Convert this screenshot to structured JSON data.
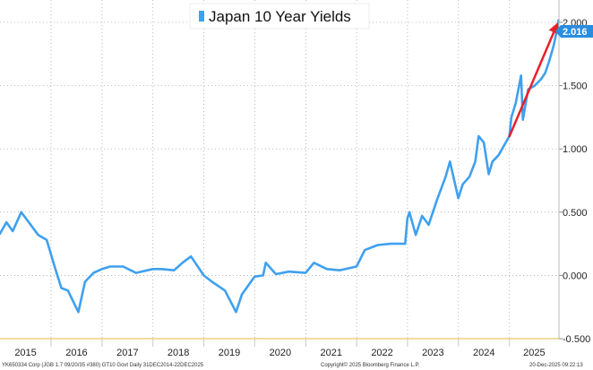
{
  "chart_data": {
    "type": "line",
    "title": "Japan 10 Year Yields",
    "series": [
      {
        "name": "Japan 10 Year Yields",
        "color": "#3fa0ef",
        "x": [
          "2014-12-31",
          "2015-02-15",
          "2015-04-01",
          "2015-06-01",
          "2015-08-01",
          "2015-10-01",
          "2015-12-01",
          "2016-02-01",
          "2016-03-15",
          "2016-05-01",
          "2016-07-15",
          "2016-09-01",
          "2016-11-01",
          "2016-12-31",
          "2017-03-01",
          "2017-06-01",
          "2017-09-01",
          "2017-12-31",
          "2018-03-01",
          "2018-06-01",
          "2018-08-01",
          "2018-10-01",
          "2018-12-31",
          "2019-03-01",
          "2019-06-01",
          "2019-08-20",
          "2019-10-01",
          "2019-12-31",
          "2020-03-01",
          "2020-03-20",
          "2020-06-01",
          "2020-09-01",
          "2020-12-31",
          "2021-03-01",
          "2021-06-01",
          "2021-09-01",
          "2021-12-31",
          "2022-03-01",
          "2022-06-01",
          "2022-09-01",
          "2022-12-15",
          "2022-12-31",
          "2023-01-15",
          "2023-03-01",
          "2023-04-15",
          "2023-06-01",
          "2023-08-01",
          "2023-10-01",
          "2023-11-01",
          "2023-12-31",
          "2024-02-01",
          "2024-03-20",
          "2024-05-01",
          "2024-05-25",
          "2024-07-01",
          "2024-08-05",
          "2024-09-01",
          "2024-10-15",
          "2024-12-31",
          "2025-01-15",
          "2025-02-15",
          "2025-03-25",
          "2025-04-07",
          "2025-05-15",
          "2025-07-01",
          "2025-08-15",
          "2025-09-15",
          "2025-10-15",
          "2025-11-15",
          "2025-12-10",
          "2025-12-19"
        ],
        "y": [
          0.33,
          0.42,
          0.35,
          0.5,
          0.41,
          0.32,
          0.28,
          0.05,
          -0.1,
          -0.12,
          -0.29,
          -0.05,
          0.02,
          0.05,
          0.07,
          0.07,
          0.02,
          0.05,
          0.05,
          0.04,
          0.1,
          0.15,
          0.0,
          -0.05,
          -0.12,
          -0.29,
          -0.15,
          -0.01,
          0.0,
          0.1,
          0.01,
          0.03,
          0.02,
          0.1,
          0.05,
          0.04,
          0.07,
          0.2,
          0.24,
          0.25,
          0.25,
          0.45,
          0.5,
          0.32,
          0.47,
          0.4,
          0.6,
          0.78,
          0.9,
          0.61,
          0.72,
          0.78,
          0.9,
          1.1,
          1.05,
          0.8,
          0.9,
          0.95,
          1.1,
          1.25,
          1.36,
          1.58,
          1.23,
          1.47,
          1.5,
          1.55,
          1.6,
          1.7,
          1.82,
          1.95,
          2.016
        ]
      }
    ],
    "x_ticks": [
      "2015",
      "2016",
      "2017",
      "2018",
      "2019",
      "2020",
      "2021",
      "2022",
      "2023",
      "2024",
      "2025"
    ],
    "y_ticks": [
      "2.000",
      "1.500",
      "1.000",
      "0.500",
      "0.000",
      "-0.500"
    ],
    "ylim": [
      -0.5,
      2.12
    ],
    "xlim": [
      "2014-12-31",
      "2025-12-22"
    ],
    "grid": true,
    "y_axis_side": "right",
    "last_value": "2.016",
    "annotation": {
      "type": "arrow",
      "color": "#e8202a",
      "from": {
        "x": "2025-01-01",
        "y": 1.1
      },
      "to": {
        "x": "2025-12-15",
        "y": 2.0
      }
    }
  },
  "footer": {
    "left": "YK650334 Corp (JGB 1.7 09/20/35 #380) GT10  Govt Daily 31DEC2014-22DEC2025",
    "center": "Copyright© 2025 Bloomberg Finance L.P.",
    "right": "20-Dec-2025 09:22:13"
  }
}
